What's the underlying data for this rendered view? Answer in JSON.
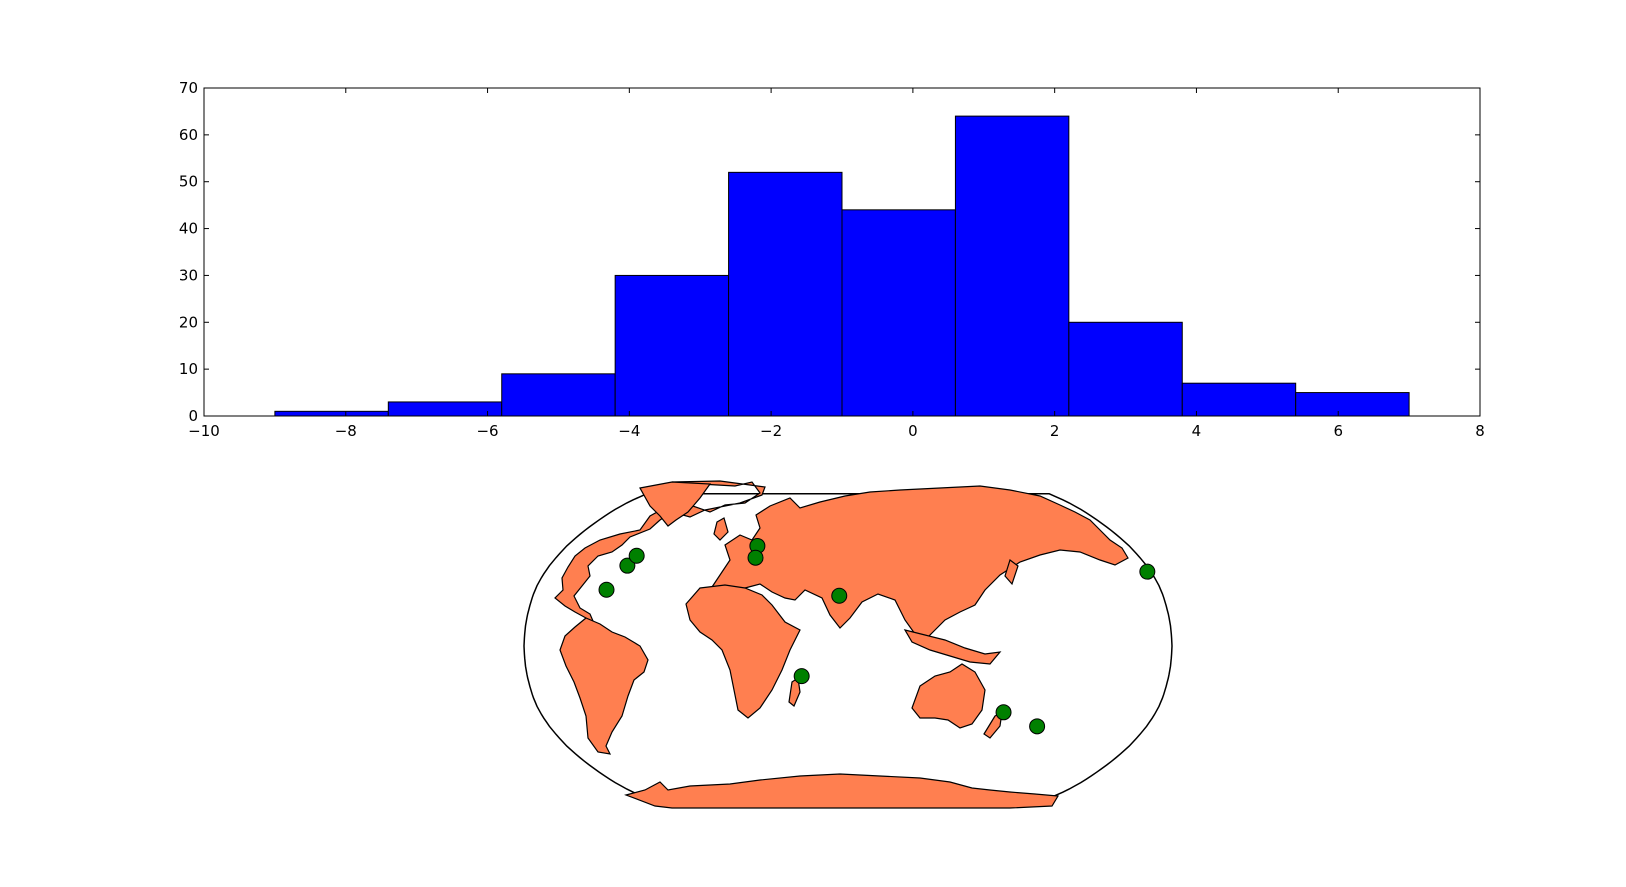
{
  "chart_data": [
    {
      "type": "bar",
      "subtype": "histogram",
      "bin_edges": [
        -9.0,
        -7.4,
        -5.8,
        -4.2,
        -2.6,
        -1.0,
        0.6,
        2.2,
        3.8,
        5.4,
        7.0
      ],
      "values": [
        1,
        3,
        9,
        30,
        52,
        44,
        64,
        20,
        7,
        5
      ],
      "xlim": [
        -10,
        8
      ],
      "ylim": [
        0,
        70
      ],
      "xticks": [
        -10,
        -8,
        -6,
        -4,
        -2,
        0,
        2,
        4,
        6,
        8
      ],
      "xtick_labels": [
        "−10",
        "−8",
        "−6",
        "−4",
        "−2",
        "0",
        "2",
        "4",
        "6",
        "8"
      ],
      "yticks": [
        0,
        10,
        20,
        30,
        40,
        50,
        60,
        70
      ],
      "ytick_labels": [
        "0",
        "10",
        "20",
        "30",
        "40",
        "50",
        "60",
        "70"
      ],
      "bar_color": "#0000ff",
      "edge_color": "#000000",
      "title": "",
      "xlabel": "",
      "ylabel": "",
      "grid": false
    },
    {
      "type": "scatter",
      "subtype": "world-map",
      "projection": "Robinson, centered at 60°E",
      "land_color": "#ff7f50",
      "ocean_color": "#ffffff",
      "marker_color": "#008000",
      "points": [
        {
          "lon": -79,
          "lat": 28
        },
        {
          "lon": -73,
          "lat": 40
        },
        {
          "lon": -71,
          "lat": 45
        },
        {
          "lon": 2,
          "lat": 50
        },
        {
          "lon": 3,
          "lat": 44
        },
        {
          "lon": 55,
          "lat": 25
        },
        {
          "lon": 34,
          "lat": -15
        },
        {
          "lon": 151,
          "lat": -33
        },
        {
          "lon": 174,
          "lat": -40
        },
        {
          "lon": -122,
          "lat": 37
        }
      ]
    }
  ]
}
